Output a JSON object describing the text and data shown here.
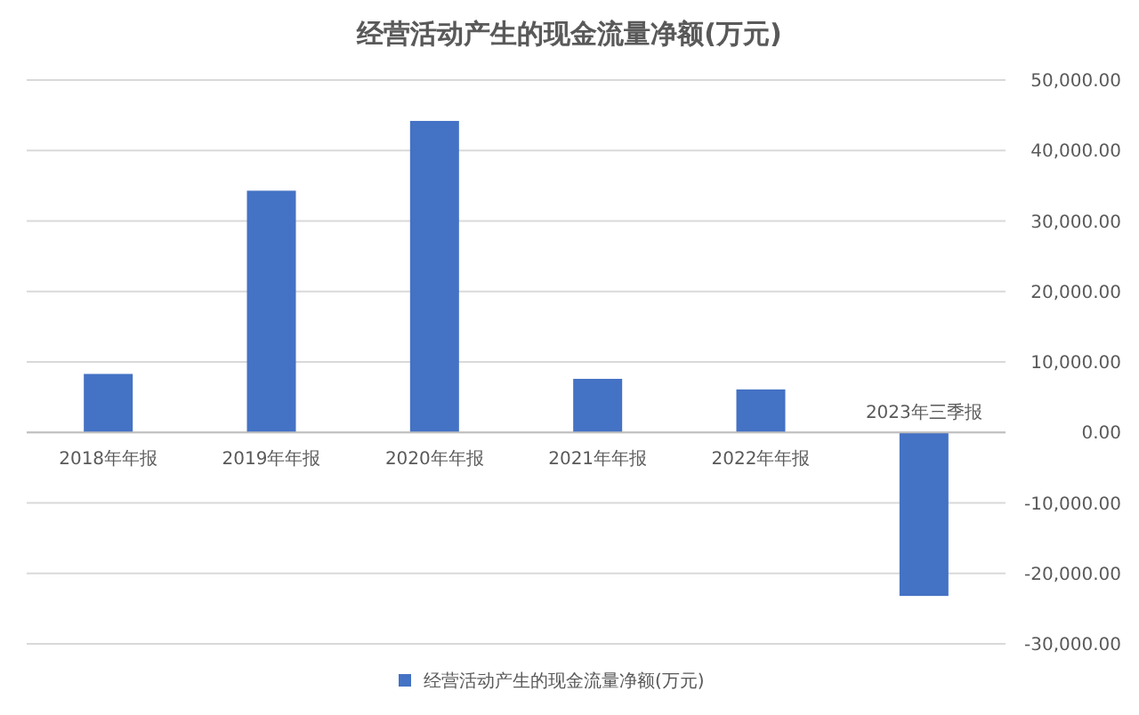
{
  "chart_data": {
    "type": "bar",
    "title": "经营活动产生的现金流量净额(万元)",
    "categories": [
      "2018年年报",
      "2019年年报",
      "2020年年报",
      "2021年年报",
      "2022年年报",
      "2023年三季报"
    ],
    "series": [
      {
        "name": "经营活动产生的现金流量净额(万元)",
        "color": "#4472c4",
        "values": [
          8300,
          34300,
          44200,
          7600,
          6100,
          -23200
        ]
      }
    ],
    "ylim": [
      -30000,
      50000
    ],
    "yticks": [
      {
        "value": -30000,
        "label": "-30,000.00"
      },
      {
        "value": -20000,
        "label": "-20,000.00"
      },
      {
        "value": -10000,
        "label": "-10,000.00"
      },
      {
        "value": 0,
        "label": "0.00"
      },
      {
        "value": 10000,
        "label": "10,000.00"
      },
      {
        "value": 20000,
        "label": "20,000.00"
      },
      {
        "value": 30000,
        "label": "30,000.00"
      },
      {
        "value": 40000,
        "label": "40,000.00"
      },
      {
        "value": 50000,
        "label": "50,000.00"
      }
    ],
    "grid": "y",
    "legend": "bottom"
  }
}
